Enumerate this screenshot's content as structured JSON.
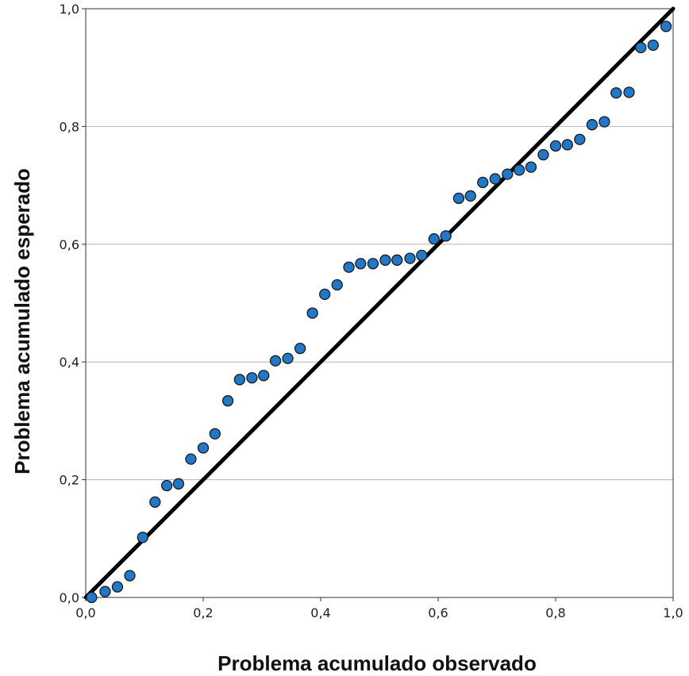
{
  "chart_data": {
    "type": "scatter",
    "title": "",
    "xlabel": "Problema acumulado observado",
    "ylabel": "Problema acumulado esperado",
    "xlim": [
      0,
      1
    ],
    "ylim": [
      0,
      1
    ],
    "xticks": [
      "0,0",
      "0,2",
      "0,4",
      "0,6",
      "0,8",
      "1,0"
    ],
    "yticks": [
      "0,0",
      "0,2",
      "0,4",
      "0,6",
      "0,8",
      "1,0"
    ],
    "grid": "horizontal",
    "reference_line": {
      "from": [
        0,
        0
      ],
      "to": [
        1,
        1
      ]
    },
    "point_color": "#1f78c8",
    "line_color": "#000000",
    "points": [
      [
        0.01,
        0.0
      ],
      [
        0.033,
        0.01
      ],
      [
        0.054,
        0.018
      ],
      [
        0.075,
        0.037
      ],
      [
        0.097,
        0.102
      ],
      [
        0.118,
        0.162
      ],
      [
        0.138,
        0.19
      ],
      [
        0.158,
        0.193
      ],
      [
        0.179,
        0.235
      ],
      [
        0.2,
        0.254
      ],
      [
        0.22,
        0.278
      ],
      [
        0.242,
        0.334
      ],
      [
        0.262,
        0.37
      ],
      [
        0.283,
        0.373
      ],
      [
        0.303,
        0.377
      ],
      [
        0.323,
        0.402
      ],
      [
        0.344,
        0.406
      ],
      [
        0.365,
        0.423
      ],
      [
        0.386,
        0.483
      ],
      [
        0.407,
        0.515
      ],
      [
        0.428,
        0.531
      ],
      [
        0.448,
        0.561
      ],
      [
        0.468,
        0.567
      ],
      [
        0.489,
        0.567
      ],
      [
        0.51,
        0.573
      ],
      [
        0.53,
        0.573
      ],
      [
        0.552,
        0.576
      ],
      [
        0.572,
        0.581
      ],
      [
        0.593,
        0.609
      ],
      [
        0.613,
        0.614
      ],
      [
        0.635,
        0.678
      ],
      [
        0.655,
        0.682
      ],
      [
        0.676,
        0.705
      ],
      [
        0.697,
        0.711
      ],
      [
        0.718,
        0.719
      ],
      [
        0.738,
        0.726
      ],
      [
        0.758,
        0.731
      ],
      [
        0.779,
        0.752
      ],
      [
        0.8,
        0.767
      ],
      [
        0.82,
        0.769
      ],
      [
        0.841,
        0.778
      ],
      [
        0.862,
        0.803
      ],
      [
        0.883,
        0.808
      ],
      [
        0.903,
        0.857
      ],
      [
        0.925,
        0.858
      ],
      [
        0.945,
        0.934
      ],
      [
        0.966,
        0.938
      ],
      [
        0.988,
        0.97
      ]
    ]
  }
}
